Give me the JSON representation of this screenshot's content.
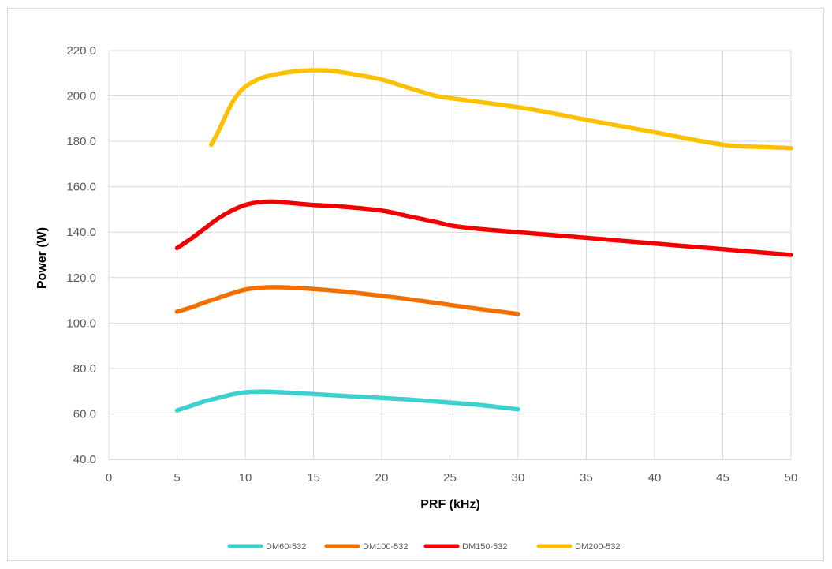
{
  "chart_data": {
    "type": "line",
    "title": "",
    "xlabel": "PRF (kHz)",
    "ylabel": "Power (W)",
    "xlim": [
      0,
      50
    ],
    "ylim": [
      40,
      220
    ],
    "x_ticks": [
      "0",
      "5",
      "10",
      "15",
      "20",
      "25",
      "30",
      "35",
      "40",
      "45",
      "50"
    ],
    "y_ticks": [
      "40.0",
      "60.0",
      "80.0",
      "100.0",
      "120.0",
      "140.0",
      "160.0",
      "180.0",
      "200.0",
      "220.0"
    ],
    "grid": true,
    "legend_position": "bottom",
    "series": [
      {
        "name": "DM60-532",
        "color": "#3ecfcf",
        "x": [
          5,
          6,
          7,
          8,
          9,
          10,
          11,
          12,
          13,
          14,
          15,
          17,
          20,
          22,
          25,
          27,
          30
        ],
        "y": [
          61.5,
          63.5,
          65.5,
          67.0,
          68.5,
          69.5,
          69.8,
          69.7,
          69.4,
          69.0,
          68.7,
          68.0,
          67.0,
          66.3,
          65.0,
          64.0,
          62.0
        ]
      },
      {
        "name": "DM100-532",
        "color": "#f27000",
        "x": [
          5,
          6,
          7,
          8,
          9,
          10,
          11,
          12,
          13,
          15,
          17,
          20,
          22,
          25,
          27,
          30
        ],
        "y": [
          105.0,
          106.8,
          109.0,
          111.0,
          113.0,
          114.7,
          115.5,
          115.8,
          115.7,
          115.0,
          114.0,
          112.0,
          110.5,
          108.0,
          106.3,
          104.0
        ]
      },
      {
        "name": "DM150-532",
        "color": "#f20000",
        "x": [
          5,
          6,
          7,
          8,
          9,
          10,
          11,
          12,
          13,
          14,
          15,
          17,
          20,
          22,
          24,
          25,
          27,
          30,
          35,
          40,
          45,
          50
        ],
        "y": [
          133.0,
          137.0,
          141.5,
          146.0,
          149.5,
          152.0,
          153.2,
          153.5,
          153.0,
          152.5,
          152.0,
          151.3,
          149.5,
          147.0,
          144.5,
          143.0,
          141.5,
          140.0,
          137.5,
          135.0,
          132.5,
          130.0
        ]
      },
      {
        "name": "DM200-532",
        "color": "#ffc000",
        "x": [
          7.5,
          8,
          8.5,
          9,
          9.5,
          10,
          11,
          12,
          13,
          14,
          15,
          16,
          17,
          18,
          20,
          22,
          24,
          25,
          27,
          30,
          32,
          35,
          40,
          45,
          48,
          50
        ],
        "y": [
          178.5,
          184.0,
          190.5,
          196.5,
          201.0,
          204.0,
          207.5,
          209.2,
          210.3,
          211.0,
          211.3,
          211.2,
          210.5,
          209.5,
          207.2,
          203.5,
          200.0,
          199.0,
          197.5,
          195.0,
          193.0,
          189.5,
          184.0,
          178.5,
          177.5,
          177.0
        ]
      }
    ]
  }
}
